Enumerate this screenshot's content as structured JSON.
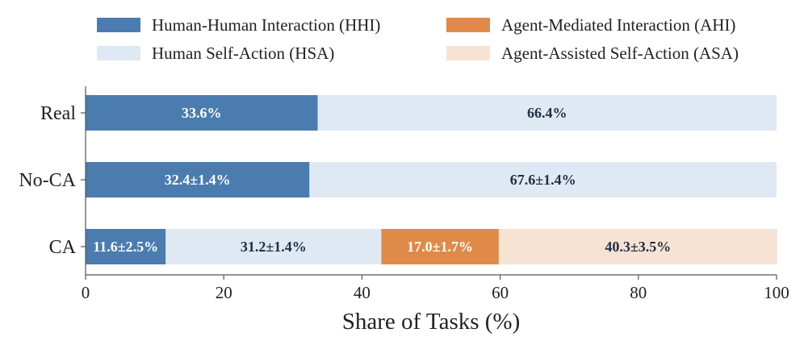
{
  "chart_data": {
    "type": "bar",
    "orientation": "horizontal",
    "stacked": true,
    "categories": [
      "Real",
      "No-CA",
      "CA"
    ],
    "series": [
      {
        "name": "Human-Human Interaction (HHI)",
        "key": "hhi",
        "color": "#4a7cb0",
        "label_color": "#ffffff",
        "values": [
          33.6,
          32.4,
          11.6
        ],
        "labels": [
          "33.6%",
          "32.4±1.4%",
          "11.6±2.5%"
        ]
      },
      {
        "name": "Human Self-Action (HSA)",
        "key": "hsa",
        "color": "#dfe9f3",
        "label_color": "#1f2f44",
        "values": [
          66.4,
          67.6,
          31.2
        ],
        "labels": [
          "66.4%",
          "67.6±1.4%",
          "31.2±1.4%"
        ]
      },
      {
        "name": "Agent-Mediated Interaction (AHI)",
        "key": "ahi",
        "color": "#e08a4a",
        "label_color": "#ffffff",
        "values": [
          0,
          0,
          17.0
        ],
        "labels": [
          "",
          "",
          "17.0±1.7%"
        ]
      },
      {
        "name": "Agent-Assisted Self-Action (ASA)",
        "key": "asa",
        "color": "#f6e3d4",
        "label_color": "#1f2f44",
        "values": [
          0,
          0,
          40.3
        ],
        "labels": [
          "",
          "",
          "40.3±3.5%"
        ]
      }
    ],
    "xlabel": "Share of Tasks (%)",
    "ylabel": "",
    "xlim": [
      0,
      100
    ],
    "xticks": [
      0,
      20,
      40,
      60,
      80,
      100
    ],
    "grid": false,
    "legend_placement": "top"
  }
}
